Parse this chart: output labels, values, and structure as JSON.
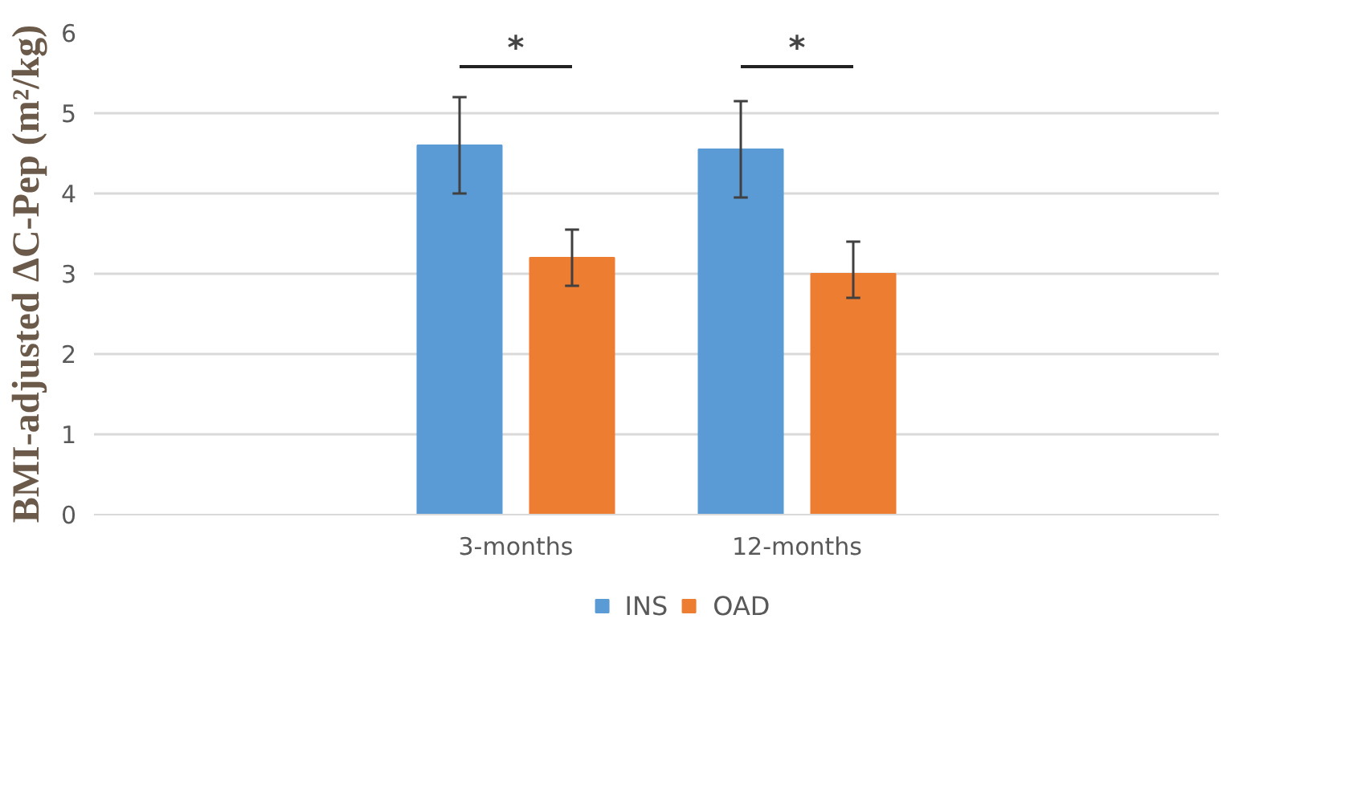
{
  "chart_data": {
    "type": "bar",
    "ylabel": "BMI-adjusted ΔC-Pep (m²/kg)",
    "categories": [
      null,
      "3-months",
      "12-months",
      null
    ],
    "series": [
      {
        "name": "INS",
        "color": "#5b9bd5",
        "values": [
          null,
          4.6,
          4.55,
          null
        ],
        "errors": [
          null,
          [
            4.0,
            5.2
          ],
          [
            3.95,
            5.15
          ],
          null
        ]
      },
      {
        "name": "OAD",
        "color": "#ed7d31",
        "values": [
          null,
          3.2,
          3.0,
          null
        ],
        "errors": [
          null,
          [
            2.85,
            3.55
          ],
          [
            2.7,
            3.4
          ],
          null
        ]
      }
    ],
    "annotations": [
      "*",
      "*"
    ],
    "ylim": [
      0,
      6
    ],
    "yticks": [
      0,
      1,
      2,
      3,
      4,
      5,
      6
    ],
    "grid": "y",
    "legend": "bottom"
  }
}
